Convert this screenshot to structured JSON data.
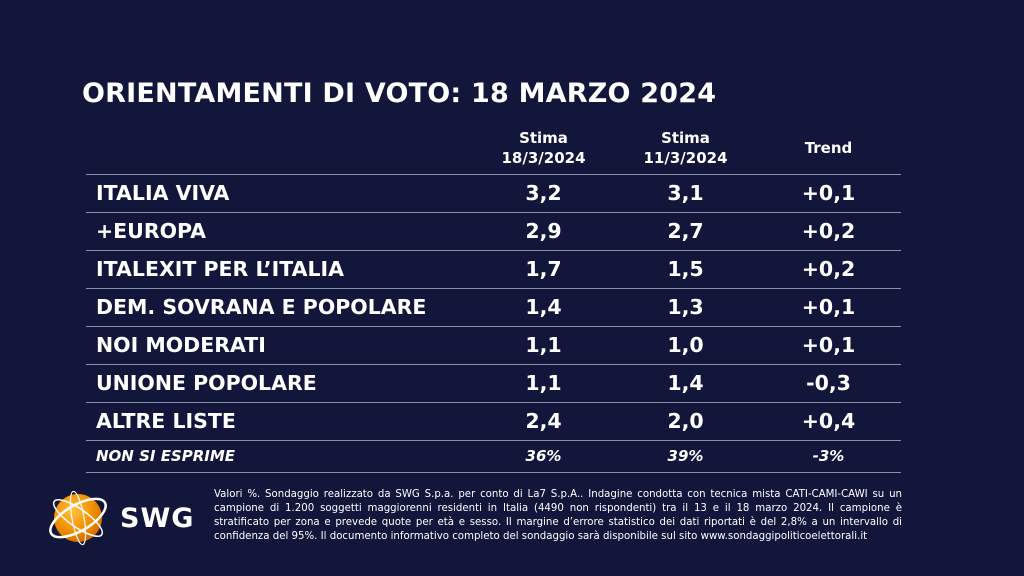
{
  "title": "ORIENTAMENTI DI VOTO: 18 MARZO 2024",
  "chart_data": {
    "type": "table",
    "title": "ORIENTAMENTI DI VOTO: 18 MARZO 2024",
    "columns": [
      {
        "line1": "Stima",
        "line2": "18/3/2024"
      },
      {
        "line1": "Stima",
        "line2": "11/3/2024"
      },
      {
        "line1": "Trend",
        "line2": ""
      }
    ],
    "rows": [
      {
        "party": "ITALIA VIVA",
        "current": "3,2",
        "previous": "3,1",
        "trend": "+0,1"
      },
      {
        "party": "+EUROPA",
        "current": "2,9",
        "previous": "2,7",
        "trend": "+0,2"
      },
      {
        "party": "ITALEXIT PER L’ITALIA",
        "current": "1,7",
        "previous": "1,5",
        "trend": "+0,2"
      },
      {
        "party": "DEM. SOVRANA E POPOLARE",
        "current": "1,4",
        "previous": "1,3",
        "trend": "+0,1"
      },
      {
        "party": "NOI MODERATI",
        "current": "1,1",
        "previous": "1,0",
        "trend": "+0,1"
      },
      {
        "party": "UNIONE POPOLARE",
        "current": "1,1",
        "previous": "1,4",
        "trend": "-0,3"
      },
      {
        "party": "ALTRE LISTE",
        "current": "2,4",
        "previous": "2,0",
        "trend": "+0,4"
      }
    ],
    "footer_row": {
      "party": "NON SI ESPRIME",
      "current": "36%",
      "previous": "39%",
      "trend": "-3%"
    }
  },
  "logo": {
    "text": "SWG",
    "accent_color": "#f39200"
  },
  "note": "Valori %. Sondaggio realizzato da SWG S.p.a. per conto di La7 S.p.A.. Indagine condotta con tecnica mista CATI-CAMI-CAWI su un campione di 1.200 soggetti maggiorenni residenti in Italia (4490 non rispondenti) tra il 13 e il 18 marzo 2024. Il campione è stratificato per zona e prevede quote per età e sesso. Il margine d’errore statistico dei dati riportati è del 2,8% a un intervallo di confidenza del 95%. Il documento informativo completo del sondaggio sarà disponibile sul sito www.sondaggipoliticoelettorali.it",
  "colors": {
    "background": "#12163a",
    "text": "#ffffff",
    "rule": "#8a8fa8"
  }
}
